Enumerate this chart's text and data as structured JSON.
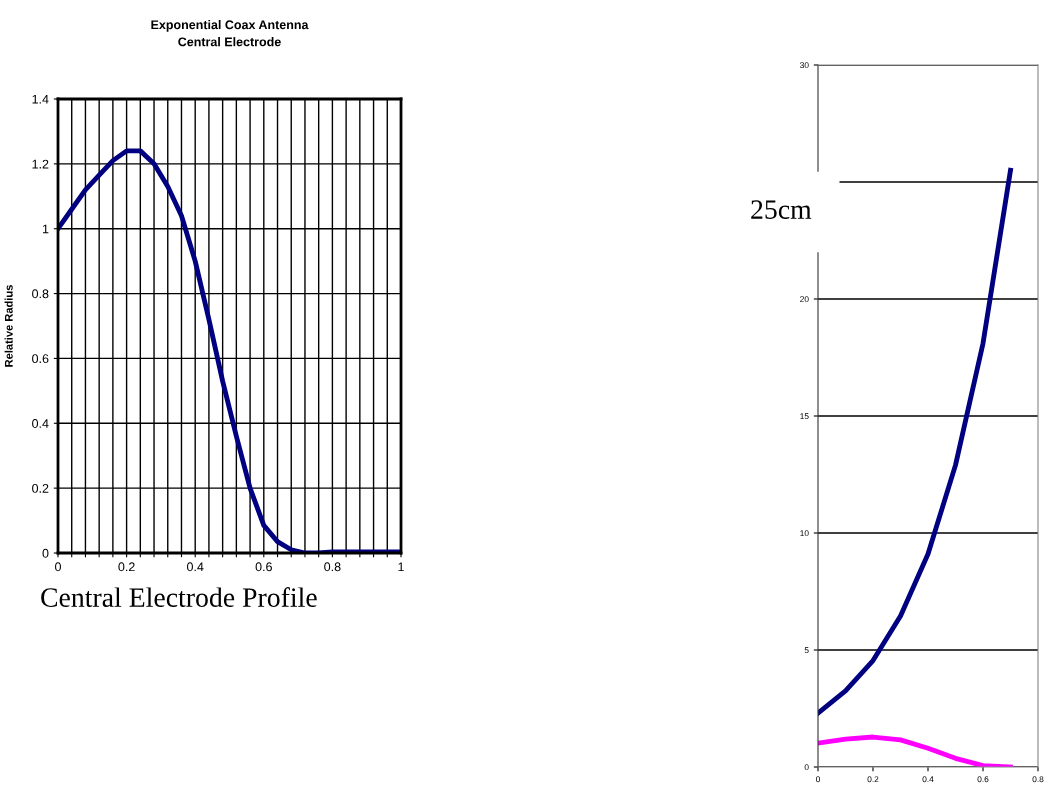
{
  "chart_data": [
    {
      "type": "line",
      "title": "Exponential Coax Antenna\nCentral Electrode",
      "ylabel": "Relative Radius",
      "annotations": [
        "Central Electrode Profile"
      ],
      "x": [
        0,
        0.04,
        0.08,
        0.12,
        0.16,
        0.2,
        0.24,
        0.28,
        0.32,
        0.36,
        0.4,
        0.44,
        0.48,
        0.52,
        0.56,
        0.6,
        0.64,
        0.68,
        0.72,
        0.76,
        0.8,
        0.9,
        1.0
      ],
      "series": [
        {
          "color": "#000080",
          "values": [
            1.0,
            1.06,
            1.12,
            1.165,
            1.21,
            1.24,
            1.24,
            1.2,
            1.13,
            1.04,
            0.9,
            0.72,
            0.53,
            0.36,
            0.2,
            0.085,
            0.035,
            0.01,
            0.0,
            0.0,
            0.003,
            0.003,
            0.003
          ]
        }
      ],
      "xlim": [
        0,
        1
      ],
      "ylim": [
        0,
        1.4
      ],
      "xticks": [
        0,
        {
          "value": 0.04,
          "label": null
        },
        {
          "value": 0.08,
          "label": null
        },
        {
          "value": 0.12,
          "label": null
        },
        {
          "value": 0.16,
          "label": null
        },
        0.2,
        {
          "value": 0.24,
          "label": null
        },
        {
          "value": 0.28,
          "label": null
        },
        {
          "value": 0.32,
          "label": null
        },
        {
          "value": 0.36,
          "label": null
        },
        0.4,
        {
          "value": 0.44,
          "label": null
        },
        {
          "value": 0.48,
          "label": null
        },
        {
          "value": 0.52,
          "label": null
        },
        {
          "value": 0.56,
          "label": null
        },
        0.6,
        {
          "value": 0.64,
          "label": null
        },
        {
          "value": 0.68,
          "label": null
        },
        {
          "value": 0.72,
          "label": null
        },
        {
          "value": 0.76,
          "label": null
        },
        0.8,
        {
          "value": 0.84,
          "label": null
        },
        {
          "value": 0.88,
          "label": null
        },
        {
          "value": 0.92,
          "label": null
        },
        {
          "value": 0.96,
          "label": null
        },
        1
      ],
      "yticks": [
        0,
        0.2,
        0.4,
        0.6,
        0.8,
        1,
        1.2,
        1.4
      ],
      "grid": true,
      "legend": false,
      "marker": "none",
      "line_style": "solid"
    },
    {
      "type": "line",
      "annotations": [
        "25cm"
      ],
      "x": [
        0,
        0.1,
        0.2,
        0.3,
        0.4,
        0.5,
        0.6,
        0.7
      ],
      "series": [
        {
          "color": "#000080",
          "values": [
            2.3,
            3.25,
            4.55,
            6.45,
            9.1,
            12.9,
            18.1,
            25.5
          ]
        },
        {
          "color": "#ff00ff",
          "values": [
            1.02,
            1.19,
            1.28,
            1.16,
            0.8,
            0.37,
            0.06,
            0.0
          ]
        }
      ],
      "xlim": [
        0,
        0.8
      ],
      "ylim": [
        0,
        30
      ],
      "xticks": [
        0,
        0.2,
        0.4,
        0.6,
        0.8
      ],
      "yticks": [
        0,
        5,
        10,
        15,
        20,
        {
          "value": 25,
          "label": null
        },
        30
      ],
      "grid": "y",
      "legend": false,
      "marker": "none",
      "line_style": "solid"
    }
  ]
}
